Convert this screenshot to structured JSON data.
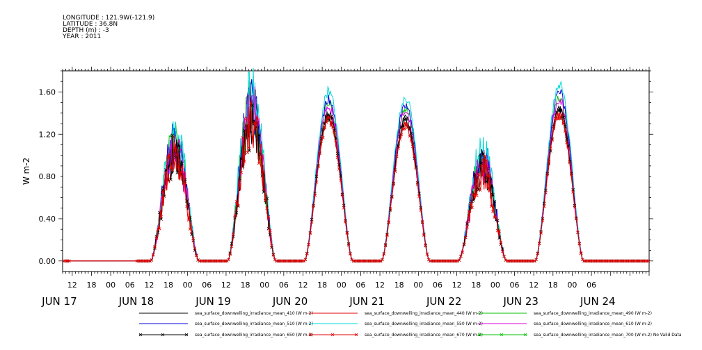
{
  "meta": {
    "longitude": "LONGITUDE : 121.9W(-121.9)",
    "latitude": "LATITUDE : 36.8N",
    "depth": "DEPTH (m) : -3",
    "year": "YEAR : 2011"
  },
  "chart_data": {
    "type": "line",
    "title": "",
    "xlabel": "",
    "ylabel": "W m-2",
    "ylim": [
      -0.1,
      1.8
    ],
    "xlim_hours": [
      -15,
      168
    ],
    "x_reference": "JUN 17 00:00",
    "yticks": [
      "0.00",
      "0.40",
      "0.80",
      "1.20",
      "1.60"
    ],
    "ytick_values": [
      0.0,
      0.4,
      0.8,
      1.2,
      1.6
    ],
    "xticks_hours": [
      "12",
      "18",
      "00",
      "06",
      "12",
      "18",
      "00",
      "06",
      "12",
      "18",
      "00",
      "06",
      "12",
      "18",
      "00",
      "06",
      "12",
      "18",
      "00",
      "06",
      "12",
      "18",
      "00",
      "06",
      "12",
      "18",
      "00",
      "06"
    ],
    "date_labels": [
      "JUN 17",
      "JUN 18",
      "JUN 19",
      "JUN 20",
      "JUN 21",
      "JUN 22",
      "JUN 23",
      "JUN 24"
    ],
    "grid": false,
    "legend_position": "bottom",
    "days": [
      {
        "day": "JUN 18",
        "peak_hour": 19.5,
        "rise_hour": 12.5,
        "set_hour": 27.5,
        "peak": 1.0,
        "noisy": true
      },
      {
        "day": "JUN 19",
        "peak_hour": 43.5,
        "rise_hour": 36.5,
        "set_hour": 51.5,
        "peak": 1.3,
        "noisy": true
      },
      {
        "day": "JUN 20",
        "peak_hour": 67.5,
        "rise_hour": 60.5,
        "set_hour": 75.5,
        "peak": 1.35,
        "noisy": false
      },
      {
        "day": "JUN 21",
        "peak_hour": 91.5,
        "rise_hour": 84.5,
        "set_hour": 99.5,
        "peak": 1.3,
        "noisy": false
      },
      {
        "day": "JUN 22",
        "peak_hour": 115.5,
        "rise_hour": 108.5,
        "set_hour": 123.5,
        "peak": 0.85,
        "noisy": true
      },
      {
        "day": "JUN 23",
        "peak_hour": 139.5,
        "rise_hour": 132.5,
        "set_hour": 147.5,
        "peak": 1.4,
        "noisy": false
      }
    ],
    "series": [
      {
        "name": "sea_surface_downwelling_irradiance_mean_410 (W m-2)",
        "color": "#000000",
        "scale": 1.05,
        "marker": false
      },
      {
        "name": "sea_surface_downwelling_irradiance_mean_440 (W m-2)",
        "color": "#e00000",
        "scale": 1.0,
        "marker": false
      },
      {
        "name": "sea_surface_downwelling_irradiance_mean_490 (W m-2)",
        "color": "#00c000",
        "scale": 1.12,
        "marker": false
      },
      {
        "name": "sea_surface_downwelling_irradiance_mean_510 (W m-2)",
        "color": "#0000e0",
        "scale": 1.15,
        "marker": false
      },
      {
        "name": "sea_surface_downwelling_irradiance_mean_550 (W m-2)",
        "color": "#00d8d8",
        "scale": 1.2,
        "marker": false
      },
      {
        "name": "sea_surface_downwelling_irradiance_mean_610 (W m-2)",
        "color": "#e000e0",
        "scale": 1.1,
        "marker": false
      },
      {
        "name": "sea_surface_downwelling_irradiance_mean_650 (W m-2)",
        "color": "#000000",
        "scale": 1.02,
        "marker": true
      },
      {
        "name": "sea_surface_downwelling_irradiance_mean_670 (W m-2)",
        "color": "#e00000",
        "scale": 1.0,
        "marker": true
      },
      {
        "name": "sea_surface_downwelling_irradiance_mean_700 (W m-2) No Valid Data",
        "color": "#00c000",
        "scale": 0,
        "marker": true
      }
    ]
  }
}
